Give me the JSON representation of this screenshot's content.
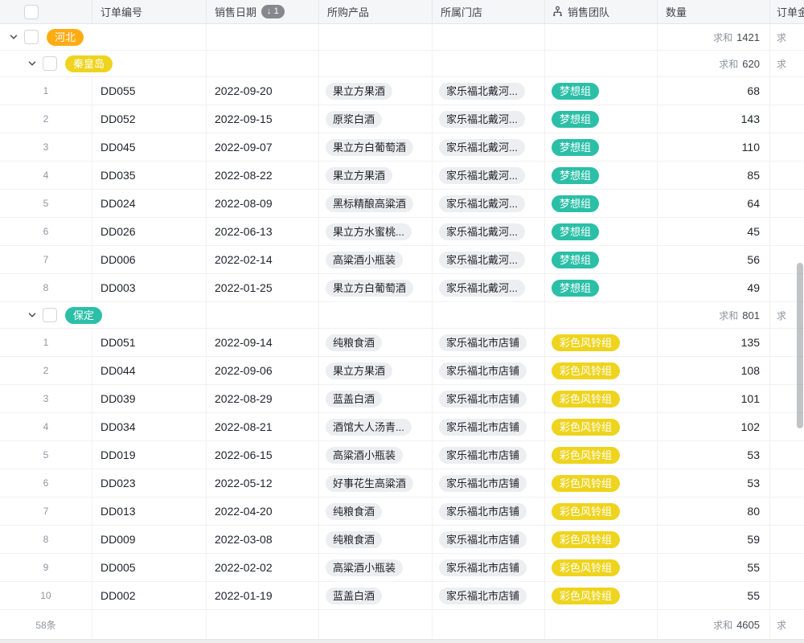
{
  "labels": {
    "sum": "求和"
  },
  "colors": {
    "orange": "#ffac14",
    "yellow": "#eed41e",
    "teal": "#2bbfa7",
    "pill_gray": "#eceef1",
    "sort_badge_gray": "#85898e"
  },
  "header": {
    "order": "订单编号",
    "date": "销售日期",
    "sort_badge": "↓ 1",
    "product": "所购产品",
    "store": "所属门店",
    "team": "销售团队",
    "qty": "数量",
    "amount": "订单金"
  },
  "rows": [
    {
      "type": "group",
      "level": 1,
      "label": "河北",
      "color": "orange",
      "sum": "1421",
      "amount_partial": "求"
    },
    {
      "type": "group",
      "level": 2,
      "label": "秦皇岛",
      "color": "yellow",
      "sum": "620",
      "amount_partial": "求"
    },
    {
      "type": "data",
      "num": "1",
      "order": "DD055",
      "date": "2022-09-20",
      "product": "果立方果酒",
      "store": "家乐福北戴河...",
      "team": "梦想组",
      "team_color": "teal",
      "qty": "68"
    },
    {
      "type": "data",
      "num": "2",
      "order": "DD052",
      "date": "2022-09-15",
      "product": "原浆白酒",
      "store": "家乐福北戴河...",
      "team": "梦想组",
      "team_color": "teal",
      "qty": "143"
    },
    {
      "type": "data",
      "num": "3",
      "order": "DD045",
      "date": "2022-09-07",
      "product": "果立方白葡萄酒",
      "store": "家乐福北戴河...",
      "team": "梦想组",
      "team_color": "teal",
      "qty": "110"
    },
    {
      "type": "data",
      "num": "4",
      "order": "DD035",
      "date": "2022-08-22",
      "product": "果立方果酒",
      "store": "家乐福北戴河...",
      "team": "梦想组",
      "team_color": "teal",
      "qty": "85"
    },
    {
      "type": "data",
      "num": "5",
      "order": "DD024",
      "date": "2022-08-09",
      "product": "黑标精酿高粱酒",
      "store": "家乐福北戴河...",
      "team": "梦想组",
      "team_color": "teal",
      "qty": "64"
    },
    {
      "type": "data",
      "num": "6",
      "order": "DD026",
      "date": "2022-06-13",
      "product": "果立方水蜜桃...",
      "store": "家乐福北戴河...",
      "team": "梦想组",
      "team_color": "teal",
      "qty": "45"
    },
    {
      "type": "data",
      "num": "7",
      "order": "DD006",
      "date": "2022-02-14",
      "product": "高粱酒小瓶装",
      "store": "家乐福北戴河...",
      "team": "梦想组",
      "team_color": "teal",
      "qty": "56"
    },
    {
      "type": "data",
      "num": "8",
      "order": "DD003",
      "date": "2022-01-25",
      "product": "果立方白葡萄酒",
      "store": "家乐福北戴河...",
      "team": "梦想组",
      "team_color": "teal",
      "qty": "49"
    },
    {
      "type": "group",
      "level": 2,
      "label": "保定",
      "color": "teal",
      "sum": "801",
      "amount_partial": "求"
    },
    {
      "type": "data",
      "num": "1",
      "order": "DD051",
      "date": "2022-09-14",
      "product": "纯粮食酒",
      "store": "家乐福北市店铺",
      "team": "彩色风铃组",
      "team_color": "yellow",
      "qty": "135"
    },
    {
      "type": "data",
      "num": "2",
      "order": "DD044",
      "date": "2022-09-06",
      "product": "果立方果酒",
      "store": "家乐福北市店铺",
      "team": "彩色风铃组",
      "team_color": "yellow",
      "qty": "108"
    },
    {
      "type": "data",
      "num": "3",
      "order": "DD039",
      "date": "2022-08-29",
      "product": "蓝盖白酒",
      "store": "家乐福北市店铺",
      "team": "彩色风铃组",
      "team_color": "yellow",
      "qty": "101"
    },
    {
      "type": "data",
      "num": "4",
      "order": "DD034",
      "date": "2022-08-21",
      "product": "酒馆大人汤青...",
      "store": "家乐福北市店铺",
      "team": "彩色风铃组",
      "team_color": "yellow",
      "qty": "102"
    },
    {
      "type": "data",
      "num": "5",
      "order": "DD019",
      "date": "2022-06-15",
      "product": "高粱酒小瓶装",
      "store": "家乐福北市店铺",
      "team": "彩色风铃组",
      "team_color": "yellow",
      "qty": "53"
    },
    {
      "type": "data",
      "num": "6",
      "order": "DD023",
      "date": "2022-05-12",
      "product": "好事花生高粱酒",
      "store": "家乐福北市店铺",
      "team": "彩色风铃组",
      "team_color": "yellow",
      "qty": "53"
    },
    {
      "type": "data",
      "num": "7",
      "order": "DD013",
      "date": "2022-04-20",
      "product": "纯粮食酒",
      "store": "家乐福北市店铺",
      "team": "彩色风铃组",
      "team_color": "yellow",
      "qty": "80"
    },
    {
      "type": "data",
      "num": "8",
      "order": "DD009",
      "date": "2022-03-08",
      "product": "纯粮食酒",
      "store": "家乐福北市店铺",
      "team": "彩色风铃组",
      "team_color": "yellow",
      "qty": "59"
    },
    {
      "type": "data",
      "num": "9",
      "order": "DD005",
      "date": "2022-02-02",
      "product": "高粱酒小瓶装",
      "store": "家乐福北市店铺",
      "team": "彩色风铃组",
      "team_color": "yellow",
      "qty": "55"
    },
    {
      "type": "data",
      "num": "10",
      "order": "DD002",
      "date": "2022-01-19",
      "product": "蓝盖白酒",
      "store": "家乐福北市店铺",
      "team": "彩色风铃组",
      "team_color": "yellow",
      "qty": "55"
    }
  ],
  "footer": {
    "count": "58条",
    "sum_value": "4605",
    "amount_partial": "求"
  }
}
